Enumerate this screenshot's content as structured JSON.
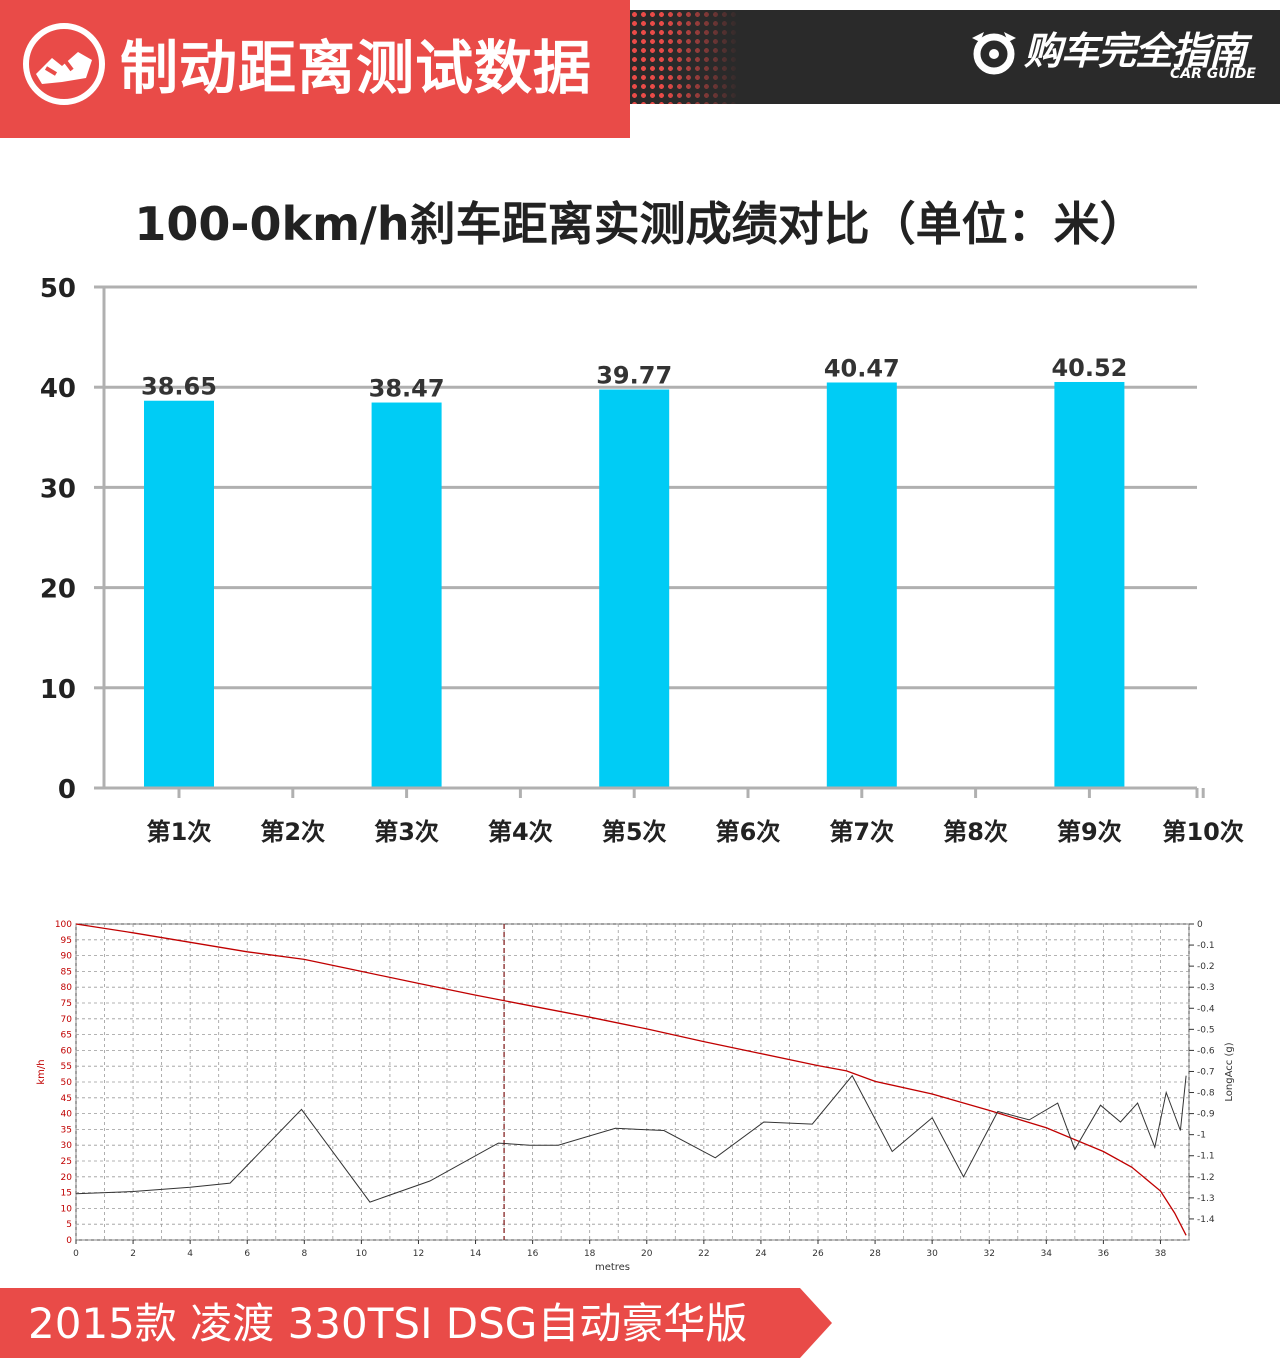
{
  "header": {
    "title": "制动距离测试数据",
    "brand_name": "购车完全指南",
    "brand_sub": "CAR GUIDE",
    "accent_color": "#e94b48",
    "dark_color": "#2a2a2a"
  },
  "chart_data": [
    {
      "type": "bar",
      "title": "100-0km/h刹车距离实测成绩对比（单位：米）",
      "categories": [
        "第1次",
        "第2次",
        "第3次",
        "第4次",
        "第5次",
        "第6次",
        "第7次",
        "第8次",
        "第9次",
        "第10次"
      ],
      "values": [
        38.65,
        null,
        38.47,
        null,
        39.77,
        null,
        40.47,
        null,
        40.52,
        null
      ],
      "value_labels": [
        "38.65",
        "",
        "38.47",
        "",
        "39.77",
        "",
        "40.47",
        "",
        "40.52",
        ""
      ],
      "ylim": [
        0,
        50
      ],
      "yticks": [
        0,
        10,
        20,
        30,
        40,
        50
      ],
      "grid": true,
      "bar_color": "#00ccf5"
    },
    {
      "type": "line",
      "xlabel": "metres",
      "ylabel": "km/h",
      "y2label": "LongAcc (g)",
      "xlim": [
        0,
        39
      ],
      "ylim": [
        0,
        100
      ],
      "y2lim": [
        -1.5,
        0
      ],
      "xticks": [
        0,
        2,
        4,
        6,
        8,
        10,
        12,
        14,
        16,
        18,
        20,
        22,
        24,
        26,
        28,
        30,
        32,
        34,
        36,
        38
      ],
      "yticks": [
        0,
        5,
        10,
        15,
        20,
        25,
        30,
        35,
        40,
        45,
        50,
        55,
        60,
        65,
        70,
        75,
        80,
        85,
        90,
        95,
        100
      ],
      "y2ticks": [
        "0",
        "-0.1",
        "-0.2",
        "-0.3",
        "-0.4",
        "-0.5",
        "-0.6",
        "-0.7",
        "-0.8",
        "-0.9",
        "-1",
        "-1.1",
        "-1.2",
        "-1.3",
        "-1.4"
      ],
      "marker_x": 15,
      "grid": true,
      "series": [
        {
          "axis": "left",
          "color": "#c00000",
          "x": [
            0,
            2,
            4,
            6,
            8,
            10,
            12,
            14,
            16,
            18,
            20,
            22,
            24,
            26,
            27,
            28,
            30,
            32,
            34,
            36,
            37,
            38,
            38.5,
            38.9
          ],
          "y": [
            100,
            97.2,
            94.2,
            91.2,
            88.8,
            85.0,
            81.2,
            77.5,
            74.0,
            70.5,
            66.8,
            62.8,
            59.0,
            55.2,
            53.5,
            50.2,
            46.2,
            41.0,
            35.5,
            28.0,
            23.0,
            15.5,
            8.5,
            1.5
          ]
        },
        {
          "axis": "right",
          "color": "#333333",
          "x": [
            0,
            2,
            4,
            5.4,
            7.9,
            10.3,
            12.4,
            14.8,
            15.9,
            16.9,
            18.9,
            20.6,
            22.4,
            24.1,
            25.8,
            27.2,
            28.6,
            30.0,
            31.1,
            32.3,
            33.4,
            34.4,
            35.0,
            35.9,
            36.6,
            37.2,
            37.8,
            38.2,
            38.7,
            38.9
          ],
          "y": [
            -1.28,
            -1.27,
            -1.25,
            -1.23,
            -0.88,
            -1.32,
            -1.22,
            -1.04,
            -1.05,
            -1.05,
            -0.97,
            -0.98,
            -1.11,
            -0.94,
            -0.95,
            -0.72,
            -1.08,
            -0.92,
            -1.2,
            -0.89,
            -0.93,
            -0.85,
            -1.07,
            -0.86,
            -0.94,
            -0.85,
            -1.06,
            -0.8,
            -0.98,
            -0.72
          ]
        }
      ]
    }
  ],
  "footer": {
    "text": "2015款 凌渡 330TSI DSG自动豪华版"
  }
}
